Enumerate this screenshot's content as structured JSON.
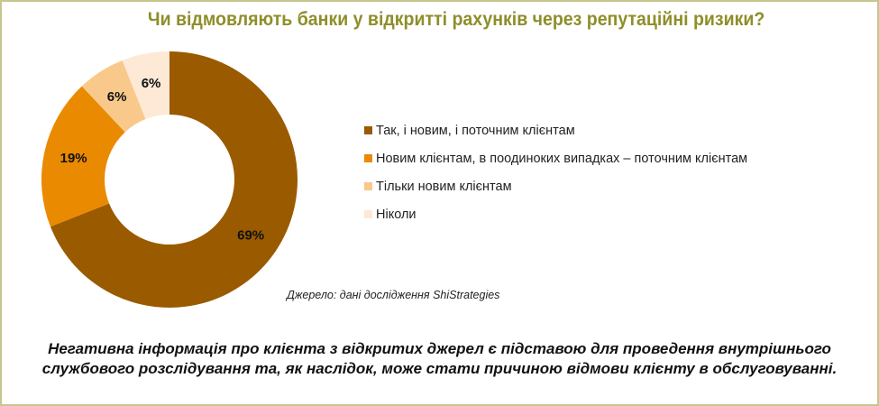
{
  "chart_data": {
    "type": "pie",
    "variant": "donut",
    "title": "Чи відмовляють банки у відкритті рахунків через репутаційні ризики?",
    "categories": [
      "Так, і новим, і поточним клієнтам",
      "Новим клієнтам, в поодиноких випадках – поточним клієнтам",
      "Тільки новим клієнтам",
      "Ніколи"
    ],
    "values": [
      69,
      19,
      6,
      6
    ],
    "data_labels": [
      "69%",
      "19%",
      "6%",
      "6%"
    ],
    "colors": [
      "#9a5a00",
      "#ea8a00",
      "#f9c98c",
      "#fde9d6"
    ],
    "legend_position": "right"
  },
  "source": "Джерело: дані дослідження ShiStrategies",
  "note": "Негативна інформація про клієнта з відкритих джерел є підставою для проведення внутрішнього службового розслідування та, як наслідок, може стати причиною відмови клієнту в обслуговуванні."
}
